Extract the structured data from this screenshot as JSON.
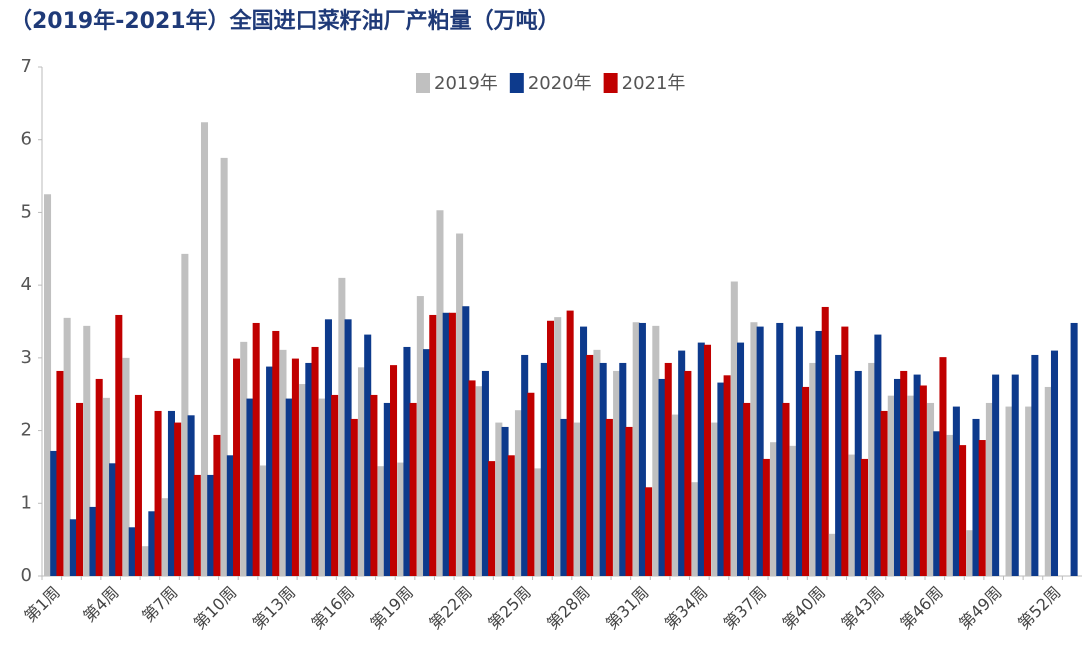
{
  "chart_data": {
    "type": "bar",
    "title": "（2019年-2021年）全国进口菜籽油厂产粕量（万吨）",
    "categories": [
      "第1周",
      null,
      null,
      "第4周",
      null,
      null,
      "第7周",
      null,
      null,
      "第10周",
      null,
      null,
      "第13周",
      null,
      null,
      "第16周",
      null,
      null,
      "第19周",
      null,
      null,
      "第22周",
      null,
      null,
      "第25周",
      null,
      null,
      "第28周",
      null,
      null,
      "第31周",
      null,
      null,
      "第34周",
      null,
      null,
      "第37周",
      null,
      null,
      "第40周",
      null,
      null,
      "第43周",
      null,
      null,
      "第46周",
      null,
      null,
      "第49周",
      null,
      null,
      "第52周",
      null
    ],
    "series": [
      {
        "name": "2019年",
        "color": "#c0c0c0",
        "values": [
          5.25,
          3.55,
          3.44,
          2.45,
          3.0,
          0.41,
          1.07,
          4.43,
          6.24,
          5.75,
          3.22,
          1.52,
          3.11,
          2.64,
          2.44,
          4.1,
          2.87,
          1.51,
          1.56,
          3.85,
          5.03,
          4.71,
          2.61,
          2.11,
          2.28,
          1.48,
          3.56,
          2.11,
          3.11,
          2.82,
          3.49,
          3.44,
          2.22,
          1.29,
          2.11,
          4.05,
          3.49,
          1.84,
          1.79,
          2.93,
          0.58,
          1.67,
          2.93,
          2.48,
          2.48,
          2.38,
          1.94,
          0.63,
          2.38,
          2.33,
          2.33,
          2.6,
          null
        ]
      },
      {
        "name": "2020年",
        "color": "#0d3a8c",
        "values": [
          1.72,
          0.78,
          0.95,
          1.55,
          0.67,
          0.89,
          2.27,
          2.21,
          1.39,
          1.66,
          2.44,
          2.88,
          2.44,
          2.93,
          3.53,
          3.53,
          3.32,
          2.38,
          3.15,
          3.12,
          3.62,
          3.71,
          2.82,
          2.05,
          3.04,
          2.93,
          2.16,
          3.43,
          2.93,
          2.93,
          3.48,
          2.71,
          3.1,
          3.21,
          2.66,
          3.21,
          3.43,
          3.48,
          3.43,
          3.37,
          3.04,
          2.82,
          3.32,
          2.71,
          2.77,
          1.99,
          2.33,
          2.16,
          2.77,
          2.77,
          3.04,
          3.1,
          3.48
        ]
      },
      {
        "name": "2021年",
        "color": "#c00000",
        "values": [
          2.82,
          2.38,
          2.71,
          3.59,
          2.49,
          2.27,
          2.11,
          1.39,
          1.94,
          2.99,
          3.48,
          3.37,
          2.99,
          3.15,
          2.49,
          2.16,
          2.49,
          2.9,
          2.38,
          3.59,
          3.62,
          2.69,
          1.58,
          1.66,
          2.52,
          3.51,
          3.65,
          3.04,
          2.16,
          2.05,
          1.22,
          2.93,
          2.82,
          3.18,
          2.76,
          2.38,
          1.61,
          2.38,
          2.6,
          3.7,
          3.43,
          1.61,
          2.27,
          2.82,
          2.62,
          3.01,
          1.8,
          1.87,
          null,
          null,
          null,
          null,
          null
        ]
      }
    ],
    "ylim": [
      0,
      7
    ],
    "yticks": [
      0,
      1,
      2,
      3,
      4,
      5,
      6,
      7
    ],
    "legend": "top"
  }
}
